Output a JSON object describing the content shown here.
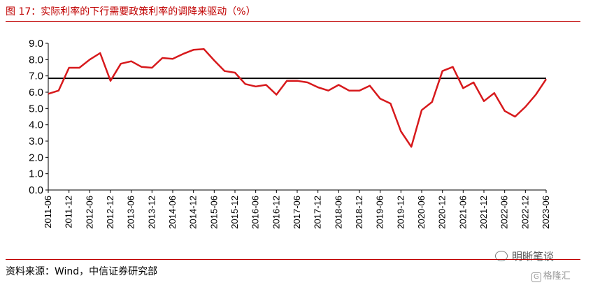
{
  "title": "图 17：实际利率的下行需要政策利率的调降来驱动（%）",
  "source": "资料来源：Wind，中信证券研究部",
  "watermark": {
    "primary": "明晰笔谈",
    "secondary": "格隆汇",
    "badge": "G"
  },
  "colors": {
    "title": "#c00000",
    "series": "#d7191c",
    "reference": "#000000"
  },
  "chart_data": {
    "type": "line",
    "ylim": [
      0,
      9
    ],
    "yticks": [
      "9.0",
      "8.0",
      "7.0",
      "6.0",
      "5.0",
      "4.0",
      "3.0",
      "2.0",
      "1.0",
      "0.0"
    ],
    "ytick_values": [
      9,
      8,
      7,
      6,
      5,
      4,
      3,
      2,
      1,
      0
    ],
    "xticks": [
      "2011-06",
      "2011-12",
      "2012-06",
      "2012-12",
      "2013-06",
      "2013-12",
      "2014-06",
      "2014-12",
      "2015-06",
      "2015-12",
      "2016-06",
      "2016-12",
      "2017-06",
      "2017-12",
      "2018-06",
      "2018-12",
      "2019-06",
      "2019-12",
      "2020-06",
      "2020-12",
      "2021-06",
      "2021-12",
      "2022-06",
      "2022-12",
      "2023-06"
    ],
    "grid": false,
    "legend": "none",
    "reference_line": 6.85,
    "series": [
      {
        "x": [
          "2011-06",
          "2011-09",
          "2011-12",
          "2012-03",
          "2012-06",
          "2012-09",
          "2012-12",
          "2013-03",
          "2013-06",
          "2013-09",
          "2013-12",
          "2014-03",
          "2014-06",
          "2014-09",
          "2014-12",
          "2015-03",
          "2015-06",
          "2015-09",
          "2015-12",
          "2016-03",
          "2016-06",
          "2016-09",
          "2016-12",
          "2017-03",
          "2017-06",
          "2017-09",
          "2017-12",
          "2018-03",
          "2018-06",
          "2018-09",
          "2018-12",
          "2019-03",
          "2019-06",
          "2019-09",
          "2019-12",
          "2020-03",
          "2020-06",
          "2020-09",
          "2020-12",
          "2021-03",
          "2021-06",
          "2021-09",
          "2021-12",
          "2022-03",
          "2022-06",
          "2022-09",
          "2022-12",
          "2023-03",
          "2023-06"
        ],
        "values": [
          5.9,
          6.1,
          7.5,
          7.5,
          8.0,
          8.4,
          6.7,
          7.75,
          7.9,
          7.55,
          7.5,
          8.1,
          8.05,
          8.35,
          8.6,
          8.65,
          7.95,
          7.3,
          7.2,
          6.5,
          6.35,
          6.45,
          5.85,
          6.7,
          6.7,
          6.6,
          6.3,
          6.1,
          6.45,
          6.1,
          6.1,
          6.4,
          5.6,
          5.3,
          3.6,
          2.65,
          4.9,
          5.4,
          7.3,
          7.55,
          6.25,
          6.6,
          5.45,
          5.95,
          4.85,
          4.5,
          5.1,
          5.85,
          6.8
        ]
      }
    ]
  }
}
